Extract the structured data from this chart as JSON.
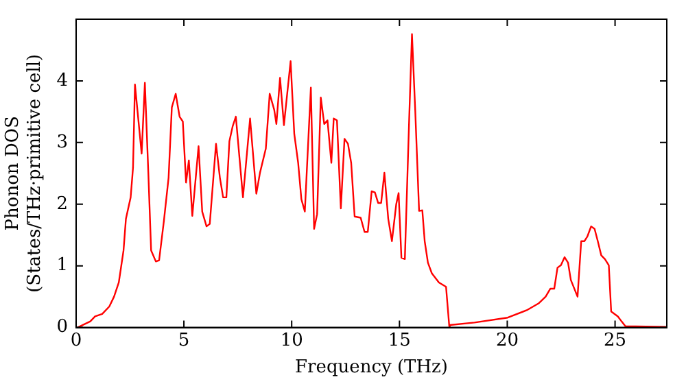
{
  "chart_data": {
    "type": "line",
    "xlabel": "Frequency (THz)",
    "ylabel": "Phonon DOS\n(States/THz·primitive cell)",
    "xlim": [
      0,
      27.4
    ],
    "ylim": [
      0,
      5
    ],
    "xticks": [
      0,
      5,
      10,
      15,
      20,
      25
    ],
    "yticks": [
      0,
      1,
      2,
      3,
      4
    ],
    "grid": false,
    "legend": false,
    "marker": "none",
    "line_style": "solid",
    "series": [
      {
        "color": "#ff0000",
        "x": [
          0.07,
          0.66,
          0.88,
          1.21,
          1.54,
          1.76,
          1.98,
          2.2,
          2.31,
          2.53,
          2.64,
          2.73,
          3.04,
          3.19,
          3.35,
          3.48,
          3.7,
          3.85,
          4.07,
          4.29,
          4.44,
          4.62,
          4.8,
          4.95,
          5.1,
          5.23,
          5.39,
          5.68,
          5.85,
          6.05,
          6.2,
          6.49,
          6.67,
          6.82,
          6.97,
          7.11,
          7.26,
          7.41,
          7.74,
          8.07,
          8.36,
          8.53,
          8.8,
          8.98,
          9.19,
          9.29,
          9.46,
          9.64,
          9.95,
          10.12,
          10.3,
          10.45,
          10.61,
          10.89,
          11.04,
          11.18,
          11.35,
          11.51,
          11.66,
          11.84,
          11.95,
          12.1,
          12.28,
          12.45,
          12.61,
          12.76,
          12.92,
          13.2,
          13.38,
          13.53,
          13.71,
          13.86,
          14.01,
          14.15,
          14.3,
          14.48,
          14.65,
          14.85,
          14.96,
          15.09,
          15.25,
          15.45,
          15.58,
          15.73,
          15.91,
          16.06,
          16.17,
          16.32,
          16.5,
          16.83,
          17.16,
          17.31,
          17.34,
          18.48,
          20.02,
          20.9,
          21.45,
          21.78,
          22.0,
          22.18,
          22.33,
          22.49,
          22.66,
          22.82,
          22.95,
          23.26,
          23.43,
          23.58,
          23.72,
          23.89,
          24.05,
          24.2,
          24.36,
          24.53,
          24.71,
          24.82,
          25.13,
          25.3,
          25.48,
          27.39
        ],
        "values": [
          0,
          0.1,
          0.18,
          0.22,
          0.34,
          0.5,
          0.73,
          1.25,
          1.76,
          2.11,
          2.59,
          3.94,
          2.82,
          3.97,
          2.51,
          1.25,
          1.07,
          1.09,
          1.72,
          2.43,
          3.57,
          3.79,
          3.42,
          3.34,
          2.35,
          2.71,
          1.81,
          2.94,
          1.88,
          1.64,
          1.68,
          2.98,
          2.43,
          2.11,
          2.11,
          3.02,
          3.26,
          3.42,
          2.11,
          3.39,
          2.17,
          2.51,
          2.9,
          3.79,
          3.53,
          3.3,
          4.05,
          3.28,
          4.32,
          3.14,
          2.67,
          2.08,
          1.88,
          3.89,
          1.6,
          1.84,
          3.73,
          3.3,
          3.36,
          2.67,
          3.39,
          3.36,
          1.93,
          3.06,
          2.98,
          2.67,
          1.8,
          1.78,
          1.55,
          1.55,
          2.21,
          2.19,
          2.02,
          2.02,
          2.51,
          1.76,
          1.4,
          2.0,
          2.18,
          1.13,
          1.11,
          3.38,
          4.76,
          3.53,
          1.89,
          1.9,
          1.4,
          1.05,
          0.88,
          0.73,
          0.66,
          0.02,
          0.04,
          0.08,
          0.16,
          0.28,
          0.39,
          0.5,
          0.63,
          0.63,
          0.97,
          1.01,
          1.14,
          1.05,
          0.77,
          0.5,
          1.4,
          1.4,
          1.48,
          1.64,
          1.6,
          1.4,
          1.17,
          1.11,
          1.01,
          0.26,
          0.18,
          0.1,
          0.02,
          0.01
        ]
      }
    ]
  }
}
